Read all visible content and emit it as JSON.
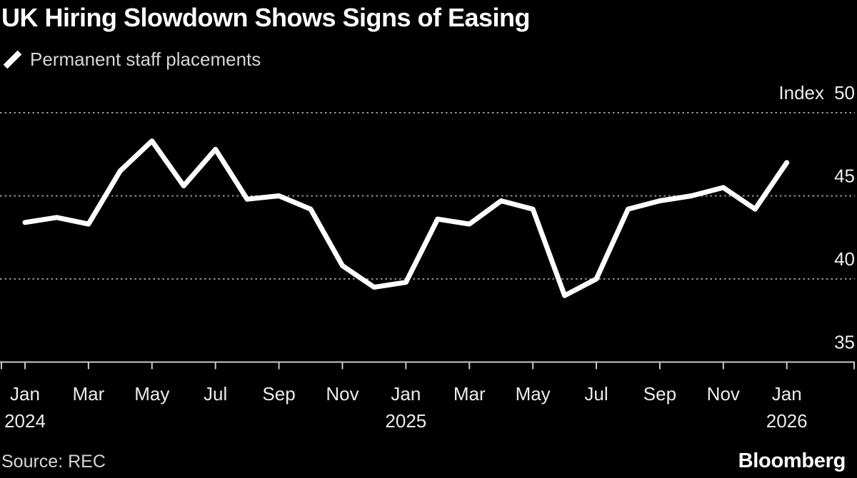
{
  "header": {
    "title": "UK Hiring Slowdown Shows Signs of Easing"
  },
  "legend": {
    "series_label": "Permanent staff placements",
    "marker_color": "#ffffff"
  },
  "footer": {
    "source": "Source: REC",
    "brand": "Bloomberg"
  },
  "colors": {
    "background": "#000000",
    "series_line": "#ffffff",
    "gridline": "#969696",
    "axis": "#c8c8c8",
    "label_text": "#ececec",
    "muted_text": "#d6d6d6"
  },
  "chart_data": {
    "type": "line",
    "title": "UK Hiring Slowdown Shows Signs of Easing",
    "y_axis_unit": "Index",
    "ylim": [
      35,
      50
    ],
    "y_ticks": [
      50,
      45,
      40,
      35
    ],
    "y_gridlines": [
      50,
      45,
      40
    ],
    "grid": "horizontal-dotted",
    "legend_position": "top-left",
    "categories": [
      "Jan 2024",
      "Feb 2024",
      "Mar 2024",
      "Apr 2024",
      "May 2024",
      "Jun 2024",
      "Jul 2024",
      "Aug 2024",
      "Sep 2024",
      "Oct 2024",
      "Nov 2024",
      "Dec 2024",
      "Jan 2025",
      "Feb 2025",
      "Mar 2025",
      "Apr 2025",
      "May 2025",
      "Jun 2025",
      "Jul 2025",
      "Aug 2025",
      "Sep 2025",
      "Oct 2025",
      "Nov 2025",
      "Dec 2025",
      "Jan 2026"
    ],
    "x_tick_indices": [
      0,
      2,
      4,
      6,
      8,
      10,
      12,
      14,
      16,
      18,
      20,
      22,
      24
    ],
    "x_tick_labels": [
      "Jan",
      "Mar",
      "May",
      "Jul",
      "Sep",
      "Nov",
      "Jan",
      "Mar",
      "May",
      "Jul",
      "Sep",
      "Nov",
      "Jan"
    ],
    "x_year_labels": {
      "0": "2024",
      "12": "2025",
      "24": "2026"
    },
    "series": [
      {
        "name": "Permanent staff placements",
        "color": "#ffffff",
        "values": [
          43.4,
          43.7,
          43.3,
          46.5,
          48.3,
          45.6,
          47.8,
          44.8,
          45.0,
          44.2,
          40.8,
          39.5,
          39.8,
          43.6,
          43.3,
          44.7,
          44.2,
          39.0,
          40.0,
          44.2,
          44.7,
          45.0,
          45.5,
          44.2,
          47.0
        ]
      }
    ]
  }
}
